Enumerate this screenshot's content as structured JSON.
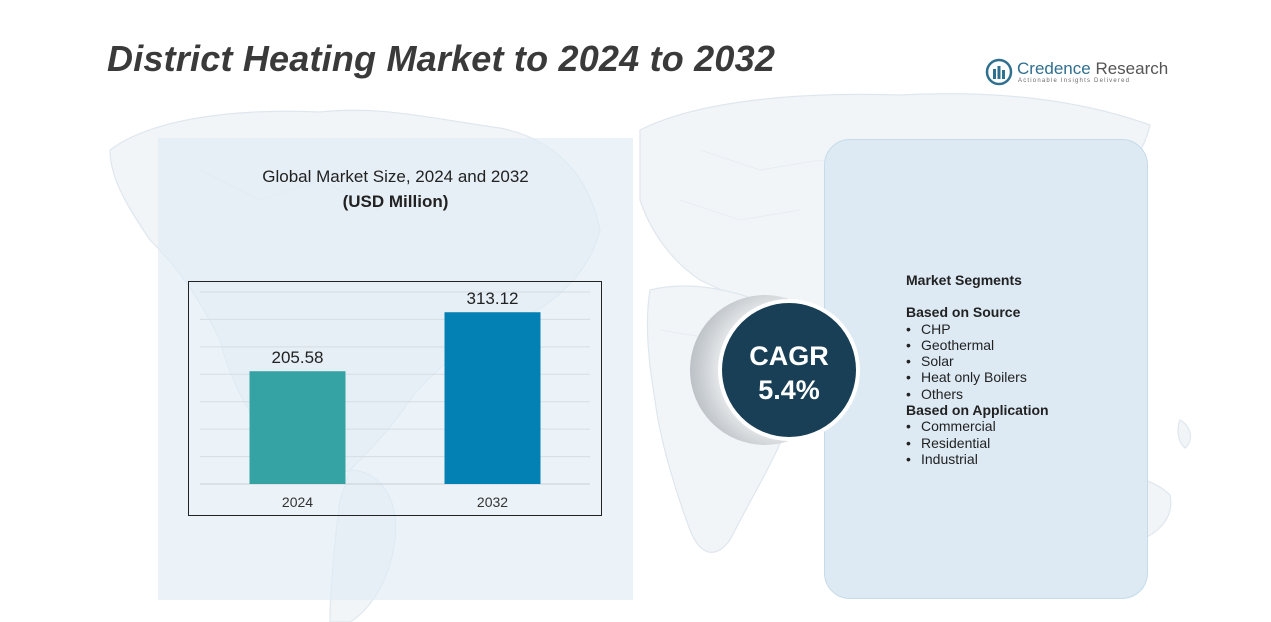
{
  "title": "District Heating Market to 2024 to 2032",
  "logo": {
    "name_part1": "Credence",
    "name_part2": "Research",
    "tagline": "Actionable Insights Delivered",
    "icon": "bar-chart-logo-icon"
  },
  "chart_data": {
    "type": "bar",
    "title": "Global Market Size,  2024 and 2032",
    "subtitle": "(USD Million)",
    "categories": [
      "2024",
      "2032"
    ],
    "values": [
      205.58,
      313.12
    ],
    "value_labels": [
      "205.58",
      "313.12"
    ],
    "colors": [
      "#35a3a3",
      "#0481b4"
    ],
    "ylim": [
      0,
      350
    ],
    "grid": true
  },
  "cagr": {
    "label": "CAGR",
    "value": "5.4%"
  },
  "segments": {
    "heading": "Market Segments",
    "groups": [
      {
        "title": "Based on Source",
        "items": [
          "CHP",
          "Geothermal",
          "Solar",
          "Heat only Boilers",
          "Others"
        ]
      },
      {
        "title": "Based on Application",
        "items": [
          "Commercial",
          "Residential",
          "Industrial"
        ]
      }
    ],
    "bullet": "•"
  },
  "colors": {
    "cagr_circle": "#183f55",
    "panel_left": "#deecf6",
    "panel_right": "#ddeaf4",
    "title": "#3a3a3a"
  }
}
